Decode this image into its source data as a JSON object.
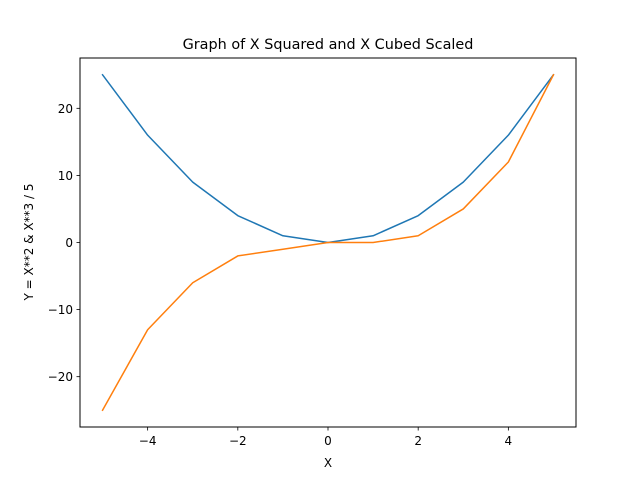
{
  "chart_data": {
    "type": "line",
    "title": "Graph of X Squared and X Cubed Scaled",
    "xlabel": "X",
    "ylabel": "Y = X**2 & X**3 / 5",
    "xlim": [
      -5.5,
      5.5
    ],
    "ylim": [
      -27.5,
      27.5
    ],
    "xticks": [
      -4,
      -2,
      0,
      2,
      4
    ],
    "xtick_labels": [
      "−4",
      "−2",
      "0",
      "2",
      "4"
    ],
    "yticks": [
      -20,
      -10,
      0,
      10,
      20
    ],
    "ytick_labels": [
      "−20",
      "−10",
      "0",
      "10",
      "20"
    ],
    "grid": false,
    "x": [
      -5,
      -4,
      -3,
      -2,
      -1,
      0,
      1,
      2,
      3,
      4,
      5
    ],
    "series": [
      {
        "values": [
          25,
          16,
          9,
          4,
          1,
          0,
          1,
          4,
          9,
          16,
          25
        ],
        "color": "#1f77b4"
      },
      {
        "values": [
          -25,
          -13,
          -6,
          -2,
          -1,
          0,
          0,
          1,
          5,
          12,
          25
        ],
        "color": "#ff7f0e"
      }
    ]
  }
}
